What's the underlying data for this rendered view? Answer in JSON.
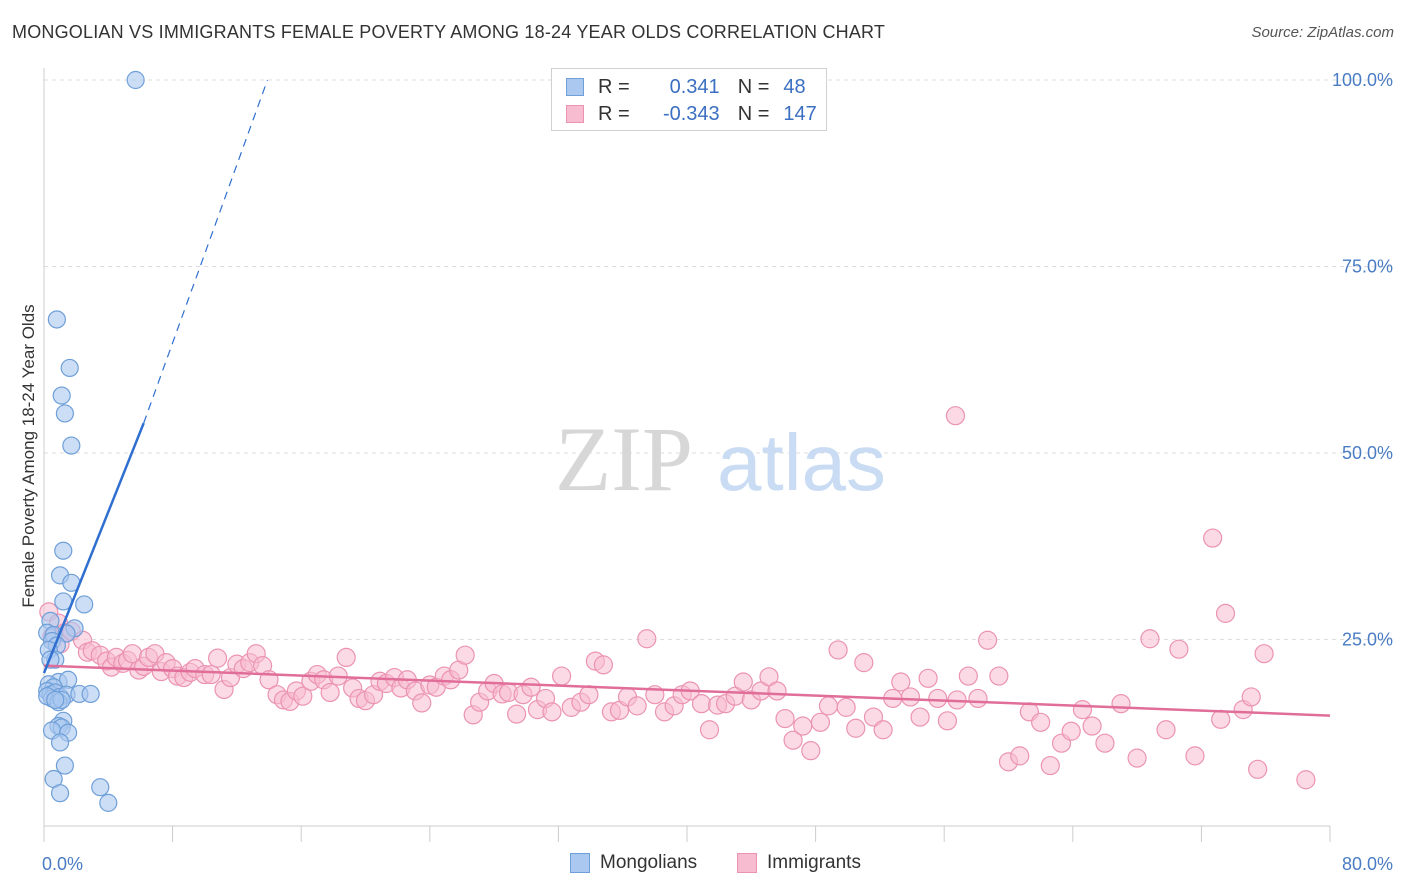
{
  "title": "MONGOLIAN VS IMMIGRANTS FEMALE POVERTY AMONG 18-24 YEAR OLDS CORRELATION CHART",
  "source": "Source: ZipAtlas.com",
  "watermark": {
    "zip": "ZIP",
    "atlas": "atlas"
  },
  "colors": {
    "mongolians_fill": "#aac8f0",
    "mongolians_stroke": "#6f9fd8",
    "mongolians_line": "#2f6fd0",
    "immigrants_fill": "#f7bcd0",
    "immigrants_stroke": "#eb93b2",
    "immigrants_line": "#e06e98",
    "tick_label": "#4a7cc4",
    "grid": "#dddddd"
  },
  "legend": {
    "r_label": "R =",
    "n_label": "N =",
    "mongolians_r": "0.341",
    "mongolians_n": "48",
    "immigrants_r": "-0.343",
    "immigrants_n": "147"
  },
  "chart_data": {
    "type": "scatter",
    "title": "MONGOLIAN VS IMMIGRANTS FEMALE POVERTY AMONG 18-24 YEAR OLDS CORRELATION CHART",
    "xlabel": "",
    "ylabel": "Female Poverty Among 18-24 Year Olds",
    "xlim": [
      0,
      80
    ],
    "ylim": [
      0,
      100
    ],
    "x_tick_labels": [
      "0.0%",
      "80.0%"
    ],
    "y_ticks": [
      25,
      50,
      75,
      100
    ],
    "y_tick_labels": [
      "25.0%",
      "50.0%",
      "75.0%",
      "100.0%"
    ],
    "grid": true,
    "legend_position": "top-center",
    "series": [
      {
        "name": "Mongolians",
        "trend": {
          "x0": 0,
          "y0": 20.5,
          "x1": 6.2,
          "y1": 54,
          "dash_x1": 13.9,
          "dash_y1": 100
        },
        "points": [
          [
            5.7,
            100
          ],
          [
            0.8,
            67.9
          ],
          [
            1.6,
            61.4
          ],
          [
            1.1,
            57.7
          ],
          [
            1.3,
            55.3
          ],
          [
            1.7,
            51
          ],
          [
            1.2,
            36.9
          ],
          [
            1.0,
            33.6
          ],
          [
            1.7,
            32.6
          ],
          [
            1.2,
            30.1
          ],
          [
            2.5,
            29.7
          ],
          [
            0.4,
            27.5
          ],
          [
            1.9,
            26.5
          ],
          [
            0.2,
            25.9
          ],
          [
            0.6,
            25.6
          ],
          [
            1.4,
            25.8
          ],
          [
            0.5,
            24.8
          ],
          [
            0.8,
            24.2
          ],
          [
            0.3,
            23.6
          ],
          [
            0.7,
            22.3
          ],
          [
            0.4,
            22.3
          ],
          [
            0.9,
            19.3
          ],
          [
            1.5,
            19.6
          ],
          [
            0.3,
            19.0
          ],
          [
            0.6,
            18.6
          ],
          [
            0.2,
            18.1
          ],
          [
            0.4,
            17.6
          ],
          [
            0.7,
            17.9
          ],
          [
            0.5,
            17.1
          ],
          [
            0.2,
            17.4
          ],
          [
            1.0,
            17.3
          ],
          [
            1.4,
            17.6
          ],
          [
            2.2,
            17.7
          ],
          [
            2.9,
            17.7
          ],
          [
            0.9,
            16.6
          ],
          [
            1.1,
            16.9
          ],
          [
            0.7,
            16.9
          ],
          [
            1.2,
            14.1
          ],
          [
            0.9,
            13.4
          ],
          [
            1.1,
            13.2
          ],
          [
            0.5,
            12.8
          ],
          [
            1.5,
            12.5
          ],
          [
            1.0,
            11.2
          ],
          [
            1.3,
            8.1
          ],
          [
            0.6,
            6.3
          ],
          [
            1.0,
            4.4
          ],
          [
            3.5,
            5.2
          ],
          [
            4.0,
            3.1
          ]
        ]
      },
      {
        "name": "Immigrants",
        "trend": {
          "x0": 0,
          "y0": 21.5,
          "x1": 80,
          "y1": 14.8
        },
        "points": [
          [
            0.3,
            28.7
          ],
          [
            0.9,
            27.2
          ],
          [
            1.3,
            25.9
          ],
          [
            1.7,
            26.1
          ],
          [
            0.5,
            25.4
          ],
          [
            1.0,
            24.4
          ],
          [
            2.4,
            24.9
          ],
          [
            2.7,
            23.3
          ],
          [
            3.0,
            23.5
          ],
          [
            3.5,
            22.9
          ],
          [
            3.9,
            22.1
          ],
          [
            4.2,
            21.3
          ],
          [
            4.5,
            22.6
          ],
          [
            4.9,
            21.8
          ],
          [
            5.2,
            22.2
          ],
          [
            5.5,
            23.1
          ],
          [
            5.9,
            20.9
          ],
          [
            6.2,
            21.4
          ],
          [
            6.5,
            22.6
          ],
          [
            6.9,
            23.1
          ],
          [
            7.3,
            20.7
          ],
          [
            7.6,
            21.9
          ],
          [
            8.0,
            21.1
          ],
          [
            8.3,
            20.1
          ],
          [
            8.7,
            19.9
          ],
          [
            9.1,
            20.6
          ],
          [
            9.4,
            21.1
          ],
          [
            10.0,
            20.3
          ],
          [
            10.4,
            20.3
          ],
          [
            10.8,
            22.5
          ],
          [
            11.2,
            18.3
          ],
          [
            11.6,
            19.9
          ],
          [
            12.0,
            21.7
          ],
          [
            12.4,
            21.1
          ],
          [
            12.8,
            21.9
          ],
          [
            13.2,
            23.1
          ],
          [
            13.6,
            21.5
          ],
          [
            14.0,
            19.6
          ],
          [
            14.5,
            17.6
          ],
          [
            14.9,
            16.9
          ],
          [
            15.3,
            16.7
          ],
          [
            15.7,
            18.1
          ],
          [
            16.1,
            17.4
          ],
          [
            16.6,
            19.4
          ],
          [
            17.0,
            20.3
          ],
          [
            17.4,
            19.6
          ],
          [
            17.8,
            17.9
          ],
          [
            18.3,
            20.1
          ],
          [
            18.8,
            22.6
          ],
          [
            19.2,
            18.5
          ],
          [
            19.6,
            17.1
          ],
          [
            20.0,
            16.8
          ],
          [
            20.5,
            17.6
          ],
          [
            20.9,
            19.4
          ],
          [
            21.3,
            19.1
          ],
          [
            21.8,
            19.9
          ],
          [
            22.2,
            18.5
          ],
          [
            22.6,
            19.6
          ],
          [
            23.1,
            18.1
          ],
          [
            23.5,
            16.5
          ],
          [
            24.0,
            18.9
          ],
          [
            24.4,
            18.6
          ],
          [
            24.9,
            20.1
          ],
          [
            25.3,
            19.6
          ],
          [
            25.8,
            20.9
          ],
          [
            26.2,
            22.9
          ],
          [
            26.7,
            14.9
          ],
          [
            27.1,
            16.6
          ],
          [
            27.6,
            18.1
          ],
          [
            28.0,
            19.1
          ],
          [
            28.5,
            17.7
          ],
          [
            28.9,
            17.9
          ],
          [
            29.4,
            15.0
          ],
          [
            29.8,
            17.6
          ],
          [
            30.3,
            18.6
          ],
          [
            30.7,
            15.6
          ],
          [
            31.2,
            17.1
          ],
          [
            31.6,
            15.3
          ],
          [
            32.2,
            20.1
          ],
          [
            32.8,
            15.9
          ],
          [
            33.4,
            16.6
          ],
          [
            33.9,
            17.6
          ],
          [
            34.3,
            22.1
          ],
          [
            34.8,
            21.6
          ],
          [
            35.3,
            15.3
          ],
          [
            35.8,
            15.5
          ],
          [
            36.3,
            17.3
          ],
          [
            36.9,
            16.1
          ],
          [
            37.5,
            25.1
          ],
          [
            38.0,
            17.6
          ],
          [
            38.6,
            15.3
          ],
          [
            39.2,
            16.1
          ],
          [
            39.7,
            17.6
          ],
          [
            40.2,
            18.1
          ],
          [
            40.9,
            16.4
          ],
          [
            41.4,
            12.9
          ],
          [
            41.9,
            16.2
          ],
          [
            42.4,
            16.4
          ],
          [
            43.0,
            17.4
          ],
          [
            43.5,
            19.3
          ],
          [
            44.0,
            16.9
          ],
          [
            44.6,
            18.1
          ],
          [
            45.1,
            20.0
          ],
          [
            45.6,
            18.1
          ],
          [
            46.1,
            14.4
          ],
          [
            46.6,
            11.5
          ],
          [
            47.2,
            13.4
          ],
          [
            47.7,
            10.1
          ],
          [
            48.3,
            13.9
          ],
          [
            48.8,
            16.1
          ],
          [
            49.4,
            23.6
          ],
          [
            49.9,
            15.9
          ],
          [
            50.5,
            13.1
          ],
          [
            51.0,
            21.9
          ],
          [
            51.6,
            14.6
          ],
          [
            52.2,
            12.9
          ],
          [
            52.8,
            17.1
          ],
          [
            53.3,
            19.3
          ],
          [
            53.9,
            17.3
          ],
          [
            54.5,
            14.6
          ],
          [
            55.0,
            19.8
          ],
          [
            55.6,
            17.1
          ],
          [
            56.2,
            14.1
          ],
          [
            56.7,
            55
          ],
          [
            56.8,
            16.9
          ],
          [
            57.5,
            20.1
          ],
          [
            58.1,
            17.1
          ],
          [
            58.7,
            24.9
          ],
          [
            59.4,
            20.1
          ],
          [
            60.0,
            8.6
          ],
          [
            60.7,
            9.4
          ],
          [
            61.3,
            15.3
          ],
          [
            62.0,
            13.9
          ],
          [
            62.6,
            8.1
          ],
          [
            63.3,
            11.1
          ],
          [
            63.9,
            12.7
          ],
          [
            64.6,
            15.6
          ],
          [
            65.2,
            13.4
          ],
          [
            66.0,
            11.1
          ],
          [
            67.0,
            16.4
          ],
          [
            68.0,
            9.1
          ],
          [
            68.8,
            25.1
          ],
          [
            69.8,
            12.9
          ],
          [
            70.6,
            23.7
          ],
          [
            71.6,
            9.4
          ],
          [
            72.7,
            38.6
          ],
          [
            73.2,
            14.3
          ],
          [
            73.5,
            28.5
          ],
          [
            74.6,
            15.6
          ],
          [
            75.1,
            17.3
          ],
          [
            75.5,
            7.6
          ],
          [
            75.9,
            23.1
          ],
          [
            78.5,
            6.2
          ]
        ]
      }
    ]
  },
  "bottom_legend": {
    "mongolians": "Mongolians",
    "immigrants": "Immigrants"
  }
}
